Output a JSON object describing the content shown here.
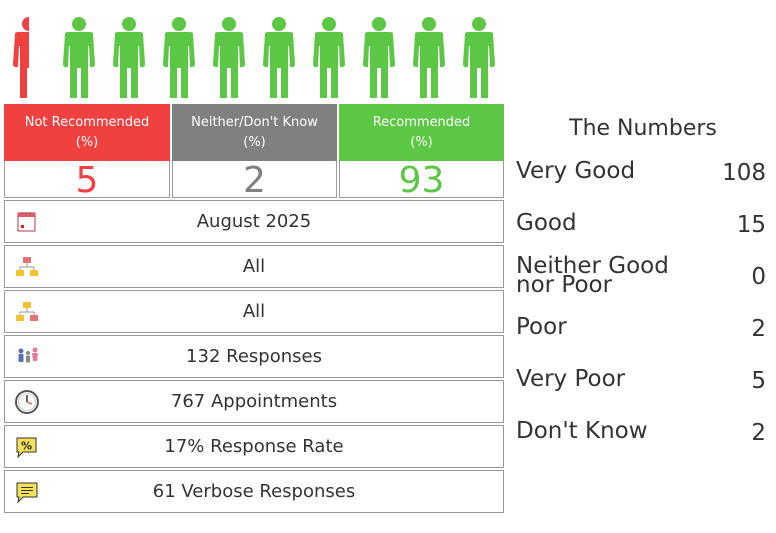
{
  "icon_colors": {
    "red": "#f04040",
    "green": "#5cc645",
    "grey": "#808080"
  },
  "people": {
    "icon_name": "person-icon",
    "total": 10,
    "red_count": 0.5
  },
  "categories": [
    {
      "label_line1": "Not Recommended",
      "label_line2": "(%)",
      "value": "5",
      "color": "#f04040"
    },
    {
      "label_line1": "Neither/Don't Know",
      "label_line2": "(%)",
      "value": "2",
      "color": "#808080"
    },
    {
      "label_line1": "Recommended",
      "label_line2": "(%)",
      "value": "93",
      "color": "#5cc645"
    }
  ],
  "info_rows": [
    {
      "icon": "calendar-icon",
      "text": "August 2025"
    },
    {
      "icon": "org-chart-red-icon",
      "text": "All"
    },
    {
      "icon": "org-chart-yellow-icon",
      "text": "All"
    },
    {
      "icon": "people-icon",
      "text": "132 Responses"
    },
    {
      "icon": "clock-icon",
      "text": "767 Appointments"
    },
    {
      "icon": "percent-tag-icon",
      "text": "17% Response Rate"
    },
    {
      "icon": "speech-bubble-icon",
      "text": "61 Verbose Responses"
    }
  ],
  "numbers": {
    "title": "The Numbers",
    "rows": [
      {
        "label": "Very Good",
        "value": "108"
      },
      {
        "label": "Good",
        "value": "15"
      },
      {
        "label_line1": "Neither Good",
        "label_line2": "nor Poor",
        "value": "0"
      },
      {
        "label": "Poor",
        "value": "2"
      },
      {
        "label": "Very Poor",
        "value": "5"
      },
      {
        "label": "Don't Know",
        "value": "2"
      }
    ]
  }
}
